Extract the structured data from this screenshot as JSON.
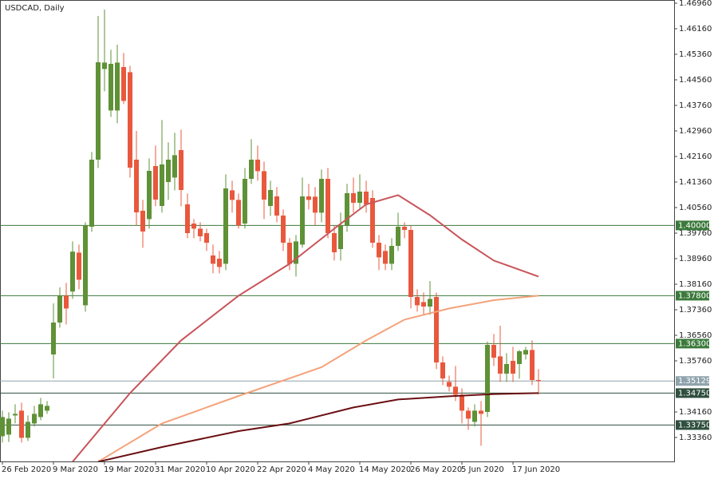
{
  "chart_data": {
    "type": "candlestick",
    "title": "USDCAD, Daily",
    "categories": [
      "26 Feb 2020",
      null,
      null,
      null,
      null,
      null,
      null,
      null,
      "9 Mar 2020",
      null,
      null,
      null,
      null,
      null,
      null,
      null,
      "19 Mar 2020",
      null,
      null,
      null,
      null,
      null,
      null,
      null,
      "31 Mar 2020",
      null,
      null,
      null,
      null,
      null,
      null,
      null,
      "10 Apr 2020",
      null,
      null,
      null,
      null,
      null,
      null,
      null,
      "22 Apr 2020",
      null,
      null,
      null,
      null,
      null,
      null,
      null,
      "4 May 2020",
      null,
      null,
      null,
      null,
      null,
      null,
      null,
      "14 May 2020",
      null,
      null,
      null,
      null,
      null,
      null,
      null,
      "26 May 2020",
      null,
      null,
      null,
      null,
      null,
      null,
      null,
      "5 Jun 2020",
      null,
      null,
      null,
      null,
      null,
      null,
      null,
      "17 Jun 2020",
      null,
      null,
      null,
      null
    ],
    "open": [
      1.334,
      1.3345,
      1.3405,
      1.342,
      1.3335,
      1.338,
      1.34,
      1.342,
      1.3596,
      1.3696,
      1.378,
      1.3793,
      1.3915,
      1.375,
      1.3996,
      1.4206,
      1.449,
      1.436,
      1.436,
      1.4496,
      1.448,
      1.4206,
      1.4046,
      1.402,
      1.4186,
      1.4061,
      1.4136,
      1.415,
      1.4236,
      1.4066,
      1.4006,
      1.399,
      1.3976,
      1.3906,
      1.3896,
      1.388,
      1.411,
      1.408,
      1.4006,
      1.4146,
      1.4206,
      1.417,
      1.4061,
      1.4091,
      1.4031,
      1.3946,
      1.388,
      1.394,
      1.4091,
      1.409,
      1.404,
      1.4146,
      1.3976,
      1.3926,
      1.4001,
      1.4101,
      1.4071,
      1.4106,
      1.4086,
      1.3946,
      1.392,
      1.388,
      1.3936,
      1.3996,
      1.3986,
      1.3776,
      1.376,
      1.3746,
      1.3776,
      1.3571,
      1.351,
      1.3495,
      1.347,
      1.342,
      1.3385,
      1.342,
      1.3416,
      1.3626,
      1.359,
      1.3536,
      1.3576,
      1.3566,
      1.3596,
      1.361,
      1.3516
    ],
    "high": [
      1.342,
      1.3415,
      1.344,
      1.3445,
      1.3405,
      1.3435,
      1.346,
      1.345,
      1.3756,
      1.3806,
      1.382,
      1.395,
      1.394,
      1.401,
      1.423,
      1.4656,
      1.4676,
      1.455,
      1.4566,
      1.454,
      1.45,
      1.4296,
      1.408,
      1.421,
      1.425,
      1.433,
      1.426,
      1.429,
      1.43,
      1.41,
      1.402,
      1.401,
      1.399,
      1.394,
      1.392,
      1.416,
      1.414,
      1.41,
      1.418,
      1.427,
      1.425,
      1.42,
      1.414,
      1.412,
      1.405,
      1.396,
      1.397,
      1.415,
      1.413,
      1.412,
      1.4175,
      1.418,
      1.4,
      1.404,
      1.413,
      1.415,
      1.416,
      1.414,
      1.411,
      1.397,
      1.394,
      1.396,
      1.404,
      1.401,
      1.4,
      1.38,
      1.379,
      1.3826,
      1.379,
      1.359,
      1.353,
      1.356,
      1.349,
      1.343,
      1.344,
      1.345,
      1.3636,
      1.366,
      1.3686,
      1.36,
      1.362,
      1.361,
      1.362,
      1.364,
      1.355
    ],
    "low": [
      1.332,
      1.3322,
      1.338,
      1.332,
      1.3325,
      1.337,
      1.339,
      1.341,
      1.3521,
      1.368,
      1.369,
      1.377,
      1.38,
      1.373,
      1.398,
      1.418,
      1.442,
      1.434,
      1.432,
      1.438,
      1.415,
      1.4,
      1.393,
      1.399,
      1.406,
      1.404,
      1.408,
      1.411,
      1.406,
      1.396,
      1.396,
      1.395,
      1.392,
      1.385,
      1.385,
      1.386,
      1.404,
      1.399,
      1.399,
      1.413,
      1.414,
      1.402,
      1.403,
      1.401,
      1.392,
      1.386,
      1.384,
      1.393,
      1.405,
      1.4,
      1.401,
      1.396,
      1.389,
      1.389,
      1.398,
      1.404,
      1.405,
      1.404,
      1.393,
      1.386,
      1.386,
      1.386,
      1.392,
      1.396,
      1.374,
      1.373,
      1.372,
      1.372,
      1.355,
      1.35,
      1.348,
      1.345,
      1.338,
      1.336,
      1.337,
      1.331,
      1.34,
      1.356,
      1.351,
      1.351,
      1.351,
      1.352,
      1.358,
      1.35,
      1.347
    ],
    "close": [
      1.34,
      1.3395,
      1.341,
      1.3335,
      1.3385,
      1.341,
      1.344,
      1.3435,
      1.3696,
      1.378,
      1.374,
      1.3918,
      1.383,
      1.4,
      1.4206,
      1.4511,
      1.451,
      1.4506,
      1.451,
      1.439,
      1.4181,
      1.4041,
      1.3981,
      1.4171,
      1.4081,
      1.4191,
      1.4206,
      1.422,
      1.4111,
      1.3976,
      1.399,
      1.3966,
      1.3946,
      1.388,
      1.387,
      1.4116,
      1.408,
      1.4,
      1.4146,
      1.4206,
      1.417,
      1.4081,
      1.4111,
      1.4031,
      1.3946,
      1.388,
      1.395,
      1.4091,
      1.408,
      1.404,
      1.4146,
      1.3976,
      1.3916,
      1.4001,
      1.4101,
      1.4071,
      1.4106,
      1.4066,
      1.3946,
      1.39,
      1.388,
      1.3936,
      1.3996,
      1.3986,
      1.3776,
      1.375,
      1.3746,
      1.377,
      1.3571,
      1.3521,
      1.3495,
      1.347,
      1.342,
      1.3395,
      1.342,
      1.341,
      1.3626,
      1.3586,
      1.3536,
      1.3566,
      1.3536,
      1.3606,
      1.361,
      1.3516,
      1.3513
    ],
    "up_color": "#5f9137",
    "down_color": "#e9583d",
    "series": [
      {
        "color": "#c8545a",
        "x": [
          11,
          20,
          28,
          37,
          45,
          52,
          57,
          62,
          67,
          72,
          77,
          84
        ],
        "values": [
          1.326,
          1.3475,
          1.364,
          1.378,
          1.388,
          1.399,
          1.4066,
          1.4095,
          1.4032,
          1.3956,
          1.389,
          1.384
        ]
      },
      {
        "color": "#f4a27a",
        "x": [
          15,
          25,
          37,
          50,
          57,
          63,
          70,
          77,
          84
        ],
        "values": [
          1.326,
          1.338,
          1.3466,
          1.3556,
          1.364,
          1.3705,
          1.374,
          1.3766,
          1.378
        ]
      },
      {
        "color": "#6b0f12",
        "x": [
          15,
          25,
          37,
          45,
          55,
          62,
          70,
          77,
          84
        ],
        "values": [
          1.326,
          1.3306,
          1.3356,
          1.338,
          1.343,
          1.3455,
          1.3465,
          1.3472,
          1.3475
        ]
      }
    ],
    "levels": [
      {
        "value": 1.4,
        "label": "1.40000",
        "color": "#3c7a3c"
      },
      {
        "value": 1.378,
        "label": "1.37800",
        "color": "#3c7a3c"
      },
      {
        "value": 1.363,
        "label": "1.36300",
        "color": "#3c7a3c"
      },
      {
        "value": 1.35129,
        "label": "1.35129",
        "color": "#8fa3ad"
      },
      {
        "value": 1.3475,
        "label": "1.34750",
        "color": "#2f4f3f"
      },
      {
        "value": 1.3375,
        "label": "1.33750",
        "color": "#2f4f3f"
      }
    ],
    "ylim": [
      1.3261,
      1.4706
    ],
    "yticks": [
      {
        "value": 1.4696,
        "label": "1.46960"
      },
      {
        "value": 1.4616,
        "label": "1.46160"
      },
      {
        "value": 1.4536,
        "label": "1.45360"
      },
      {
        "value": 1.4456,
        "label": "1.44560"
      },
      {
        "value": 1.4376,
        "label": "1.43760"
      },
      {
        "value": 1.4296,
        "label": "1.42960"
      },
      {
        "value": 1.4216,
        "label": "1.42160"
      },
      {
        "value": 1.4136,
        "label": "1.41360"
      },
      {
        "value": 1.4056,
        "label": "1.40560"
      },
      {
        "value": 1.3976,
        "label": "1.39760"
      },
      {
        "value": 1.3896,
        "label": "1.38960"
      },
      {
        "value": 1.3816,
        "label": "1.38160"
      },
      {
        "value": 1.3736,
        "label": "1.37360"
      },
      {
        "value": 1.3656,
        "label": "1.36560"
      },
      {
        "value": 1.3576,
        "label": "1.35760"
      },
      {
        "value": 1.3416,
        "label": "1.34160"
      },
      {
        "value": 1.3336,
        "label": "1.33360"
      }
    ]
  }
}
